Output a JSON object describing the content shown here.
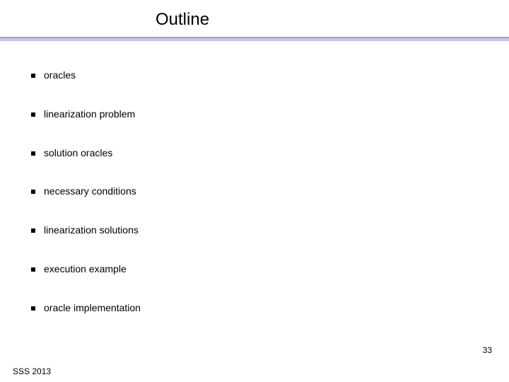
{
  "slide": {
    "title": "Outline",
    "bullets": [
      {
        "text": "oracles"
      },
      {
        "text": "linearization problem"
      },
      {
        "text": "solution oracles"
      },
      {
        "text": "necessary conditions"
      },
      {
        "text": "linearization solutions"
      },
      {
        "text": "execution example"
      },
      {
        "text": "oracle implementation"
      }
    ],
    "footer": "SSS 2013",
    "number": "33",
    "colors": {
      "background": "#ffffff",
      "text": "#000000",
      "divider_top": "#a8a2cd",
      "divider_bottom": "#c8c4e2",
      "bullet": "#000000"
    },
    "typography": {
      "title_fontsize": 24,
      "bullet_fontsize": 14,
      "footer_fontsize": 12,
      "number_fontsize": 12
    }
  }
}
